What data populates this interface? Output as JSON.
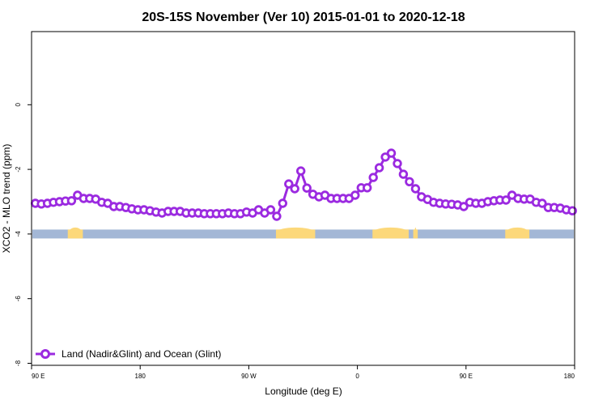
{
  "chart_data": {
    "type": "line",
    "title": "20S-15S November (Ver 10)   2015-01-01 to 2020-12-18",
    "xlabel": "Longitude (deg E)",
    "ylabel": "XCO2 - MLO trend (ppm)",
    "xlim": [
      90,
      450
    ],
    "ylim": [
      -8,
      2
    ],
    "x_ticks": [
      {
        "value": 90,
        "label": "90 E"
      },
      {
        "value": 162,
        "label": "180"
      },
      {
        "value": 234,
        "label": "90 W"
      },
      {
        "value": 306,
        "label": "0"
      },
      {
        "value": 378,
        "label": "90 E"
      },
      {
        "value": 450,
        "label": "180"
      }
    ],
    "y_ticks": [
      {
        "value": 0,
        "label": "0"
      },
      {
        "value": -2,
        "label": "-2"
      },
      {
        "value": -4,
        "label": "-4"
      },
      {
        "value": -6,
        "label": "-6"
      },
      {
        "value": -8,
        "label": "-8"
      }
    ],
    "grid": false,
    "legend_position": "bottom-left",
    "series": [
      {
        "name": "Land (Nadir&Glint) and Ocean (Glint)",
        "color": "#9b2ae0",
        "x": [
          92.5,
          96.5,
          100.5,
          104.5,
          108.5,
          112.5,
          116.5,
          120.5,
          124.5,
          128.5,
          132.5,
          136.5,
          140.5,
          144.5,
          148.5,
          152.5,
          156.5,
          160.5,
          164.5,
          168.5,
          172.5,
          176.5,
          180.5,
          184.5,
          188.5,
          192.5,
          196.5,
          200.5,
          204.5,
          208.5,
          212.5,
          216.5,
          220.5,
          224.5,
          228.5,
          232.5,
          236.5,
          240.5,
          244.5,
          248.5,
          252.5,
          256.5,
          260.5,
          264.5,
          268.5,
          272.5,
          276.5,
          280.5,
          284.5,
          288.5,
          292.5,
          296.5,
          300.5,
          304.5,
          308.5,
          312.5,
          316.5,
          320.5,
          324.5,
          328.5,
          332.5,
          336.5,
          340.5,
          344.5,
          348.5,
          352.5,
          356.5,
          360.5,
          364.5,
          368.5,
          372.5,
          376.5,
          380.5,
          384.5,
          388.5,
          392.5,
          396.5,
          400.5,
          404.5,
          408.5,
          412.5,
          416.5,
          420.5,
          424.5,
          428.5,
          432.5,
          436.5,
          440.5,
          444.5,
          448.5
        ],
        "y": [
          -3.05,
          -3.07,
          -3.05,
          -3.02,
          -3.0,
          -2.98,
          -2.97,
          -2.8,
          -2.9,
          -2.9,
          -2.92,
          -3.02,
          -3.05,
          -3.15,
          -3.15,
          -3.18,
          -3.22,
          -3.25,
          -3.25,
          -3.28,
          -3.32,
          -3.35,
          -3.3,
          -3.3,
          -3.3,
          -3.35,
          -3.35,
          -3.35,
          -3.37,
          -3.37,
          -3.37,
          -3.37,
          -3.35,
          -3.37,
          -3.37,
          -3.32,
          -3.35,
          -3.25,
          -3.35,
          -3.25,
          -3.45,
          -3.05,
          -2.45,
          -2.6,
          -2.05,
          -2.58,
          -2.77,
          -2.85,
          -2.8,
          -2.9,
          -2.9,
          -2.9,
          -2.9,
          -2.8,
          -2.57,
          -2.57,
          -2.25,
          -1.95,
          -1.62,
          -1.5,
          -1.82,
          -2.15,
          -2.38,
          -2.6,
          -2.85,
          -2.93,
          -3.02,
          -3.05,
          -3.07,
          -3.08,
          -3.1,
          -3.15,
          -3.02,
          -3.05,
          -3.05,
          -3.0,
          -2.97,
          -2.95,
          -2.95,
          -2.8,
          -2.9,
          -2.92,
          -2.92,
          -3.02,
          -3.05,
          -3.18,
          -3.18,
          -3.2,
          -3.25,
          -3.28
        ]
      }
    ],
    "surface_band": {
      "y": -4,
      "ocean_color": "#a3b7d6",
      "land_color": "#fcd87a",
      "land_ranges": [
        [
          114,
          124
        ],
        [
          252,
          278
        ],
        [
          316,
          340
        ],
        [
          343,
          346
        ],
        [
          404,
          420
        ]
      ]
    }
  }
}
